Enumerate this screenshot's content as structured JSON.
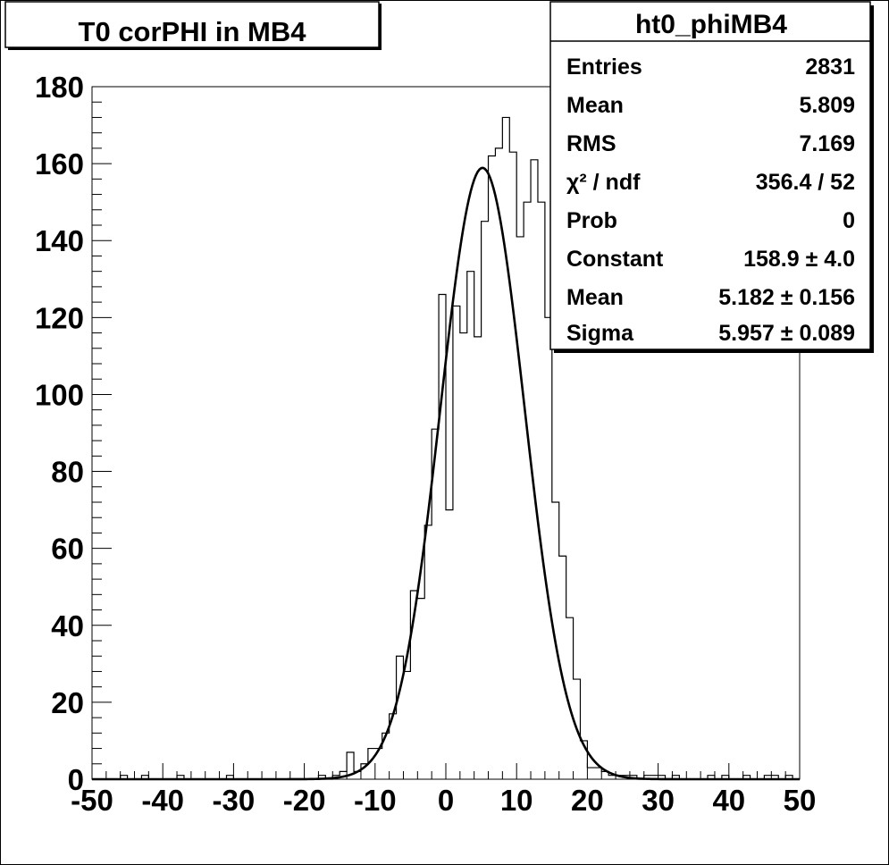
{
  "title": "T0 corPHI in MB4",
  "stats": {
    "name": "ht0_phiMB4",
    "rows": [
      {
        "label": "Entries",
        "value": "2831"
      },
      {
        "label": "Mean",
        "value": "5.809"
      },
      {
        "label": "RMS",
        "value": "7.169"
      },
      {
        "label": "χ² / ndf",
        "value": "356.4 / 52"
      },
      {
        "label": "Prob",
        "value": "0"
      },
      {
        "label": "Constant",
        "value": "158.9 ± 4.0"
      },
      {
        "label": "Mean",
        "value": "5.182 ± 0.156"
      },
      {
        "label": "Sigma",
        "value": "5.957 ± 0.089"
      }
    ]
  },
  "chart_data": {
    "type": "bar",
    "title": "T0 corPHI in MB4",
    "histogram_name": "ht0_phiMB4",
    "xlabel": "",
    "ylabel": "",
    "xlim": [
      -50,
      50
    ],
    "ylim": [
      0,
      180
    ],
    "bin_width": 1,
    "x_ticks": [
      -50,
      -40,
      -30,
      -20,
      -10,
      0,
      10,
      20,
      30,
      40,
      50
    ],
    "y_ticks": [
      0,
      20,
      40,
      60,
      80,
      100,
      120,
      140,
      160,
      180
    ],
    "bin_low_edges": [
      -50,
      -49,
      -48,
      -47,
      -46,
      -45,
      -44,
      -43,
      -42,
      -41,
      -40,
      -39,
      -38,
      -37,
      -36,
      -35,
      -34,
      -33,
      -32,
      -31,
      -30,
      -29,
      -28,
      -27,
      -26,
      -25,
      -24,
      -23,
      -22,
      -21,
      -20,
      -19,
      -18,
      -17,
      -16,
      -15,
      -14,
      -13,
      -12,
      -11,
      -10,
      -9,
      -8,
      -7,
      -6,
      -5,
      -4,
      -3,
      -2,
      -1,
      0,
      1,
      2,
      3,
      4,
      5,
      6,
      7,
      8,
      9,
      10,
      11,
      12,
      13,
      14,
      15,
      16,
      17,
      18,
      19,
      20,
      21,
      22,
      23,
      24,
      25,
      26,
      27,
      28,
      29,
      30,
      31,
      32,
      33,
      34,
      35,
      36,
      37,
      38,
      39,
      40,
      41,
      42,
      43,
      44,
      45,
      46,
      47,
      48,
      49
    ],
    "counts": [
      0,
      0,
      0,
      0,
      1,
      0,
      0,
      1,
      0,
      0,
      0,
      0,
      1,
      0,
      0,
      0,
      0,
      0,
      0,
      1,
      0,
      0,
      0,
      0,
      0,
      0,
      0,
      0,
      0,
      0,
      0,
      0,
      1,
      0,
      1,
      2,
      7,
      2,
      4,
      8,
      8,
      12,
      17,
      32,
      28,
      49,
      47,
      66,
      91,
      126,
      70,
      123,
      116,
      132,
      115,
      145,
      162,
      164,
      172,
      163,
      141,
      150,
      161,
      150,
      120,
      72,
      58,
      42,
      26,
      10,
      3,
      3,
      2,
      1,
      1,
      1,
      1,
      0,
      1,
      1,
      1,
      0,
      1,
      0,
      0,
      0,
      0,
      1,
      0,
      1,
      0,
      0,
      1,
      0,
      0,
      1,
      1,
      0,
      1,
      0
    ],
    "fit": {
      "type": "gaussian",
      "constant": 158.9,
      "mean": 5.182,
      "sigma": 5.957
    },
    "grid": false,
    "legend": "top-right"
  }
}
